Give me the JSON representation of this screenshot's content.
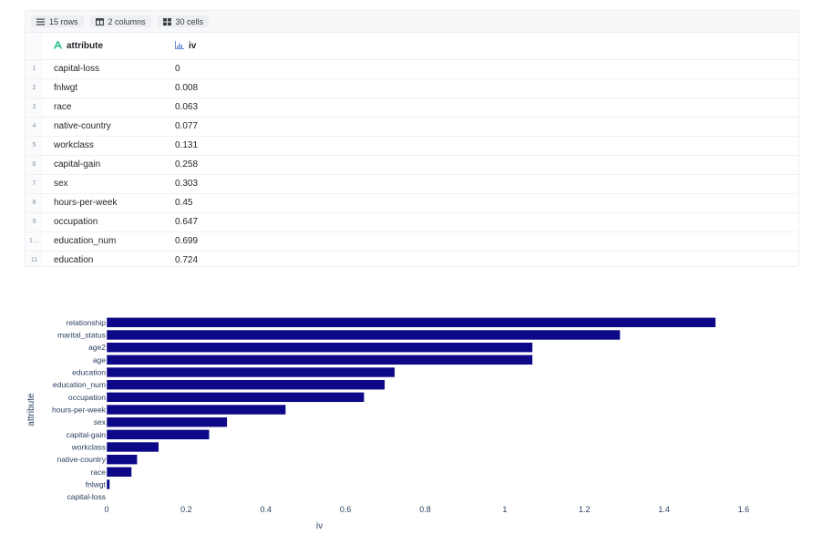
{
  "toolbar": {
    "rows_label": "15 rows",
    "columns_label": "2 columns",
    "cells_label": "30 cells"
  },
  "table": {
    "columns": [
      "attribute",
      "iv"
    ],
    "rows": [
      {
        "index": "1",
        "attribute": "capital-loss",
        "iv": "0"
      },
      {
        "index": "2",
        "attribute": "fnlwgt",
        "iv": "0.008"
      },
      {
        "index": "3",
        "attribute": "race",
        "iv": "0.063"
      },
      {
        "index": "4",
        "attribute": "native-country",
        "iv": "0.077"
      },
      {
        "index": "5",
        "attribute": "workclass",
        "iv": "0.131"
      },
      {
        "index": "6",
        "attribute": "capital-gain",
        "iv": "0.258"
      },
      {
        "index": "7",
        "attribute": "sex",
        "iv": "0.303"
      },
      {
        "index": "8",
        "attribute": "hours-per-week",
        "iv": "0.45"
      },
      {
        "index": "9",
        "attribute": "occupation",
        "iv": "0.647"
      },
      {
        "index": "1…",
        "attribute": "education_num",
        "iv": "0.699"
      },
      {
        "index": "11",
        "attribute": "education",
        "iv": "0.724"
      }
    ]
  },
  "colors": {
    "bar": "#0d0887",
    "attribute_icon": "#22c08a",
    "iv_icon": "#6b8fd6"
  },
  "icons": {
    "rows": "list-icon",
    "columns": "columns-icon",
    "cells": "grid-icon",
    "attribute_type": "text-type-icon",
    "iv_type": "chart-type-icon"
  },
  "chart_data": {
    "type": "bar",
    "orientation": "horizontal",
    "categories": [
      "capital-loss",
      "fnlwgt",
      "race",
      "native-country",
      "workclass",
      "capital-gain",
      "sex",
      "hours-per-week",
      "occupation",
      "education_num",
      "education",
      "age",
      "age2",
      "marital_status",
      "relationship"
    ],
    "values": [
      0,
      0.008,
      0.063,
      0.077,
      0.131,
      0.258,
      0.303,
      0.45,
      0.647,
      0.699,
      0.724,
      1.07,
      1.07,
      1.29,
      1.53
    ],
    "xlabel": "iv",
    "ylabel": "attribute",
    "xlim": [
      0,
      1.6
    ],
    "xticks": [
      0,
      0.2,
      0.4,
      0.6,
      0.8,
      1,
      1.2,
      1.4,
      1.6
    ],
    "xtick_labels": [
      "0",
      "0.2",
      "0.4",
      "0.6",
      "0.8",
      "1",
      "1.2",
      "1.4",
      "1.6"
    ],
    "grid": false
  }
}
